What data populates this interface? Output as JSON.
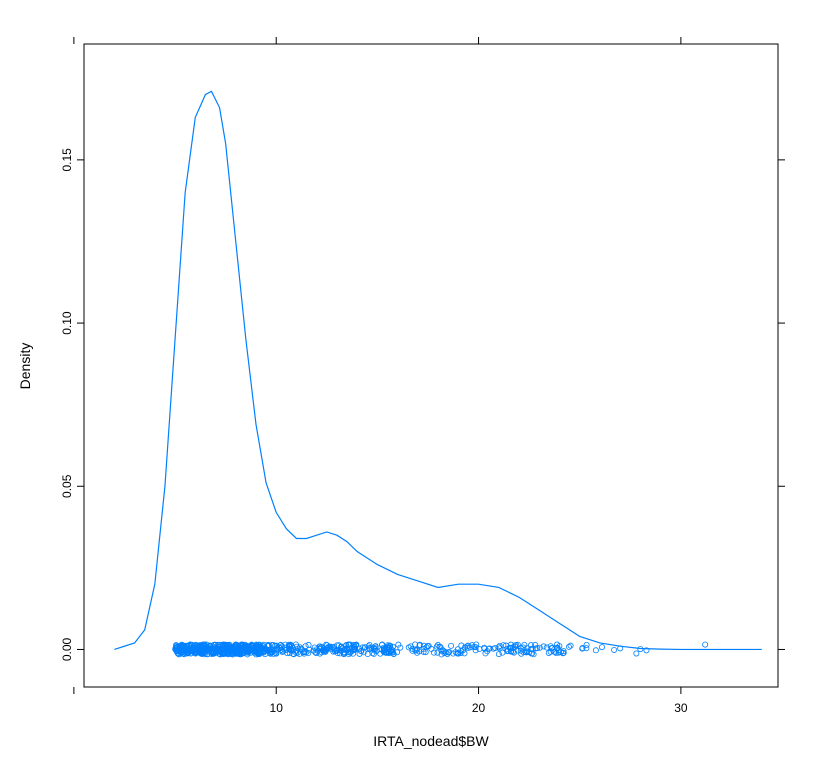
{
  "chart_data": {
    "type": "line",
    "title": "",
    "xlabel": "IRTA_nodead$BW",
    "ylabel": "Density",
    "xlim": [
      0.5,
      34.8
    ],
    "ylim": [
      -0.0115,
      0.1855
    ],
    "xticks": [
      {
        "value": 10,
        "label": "10"
      },
      {
        "value": 20,
        "label": "20"
      },
      {
        "value": 30,
        "label": "30"
      }
    ],
    "yticks": [
      {
        "value": 0.0,
        "label": "0.00"
      },
      {
        "value": 0.05,
        "label": "0.05"
      },
      {
        "value": 0.1,
        "label": "0.10"
      },
      {
        "value": 0.15,
        "label": "0.15"
      }
    ],
    "grid": false,
    "line_color": "#0080ff",
    "point_color": "#0080ff",
    "density_curve": {
      "x": [
        2.0,
        3.0,
        3.5,
        4.0,
        4.5,
        5.0,
        5.5,
        6.0,
        6.5,
        6.8,
        7.2,
        7.5,
        8.0,
        8.5,
        9.0,
        9.5,
        10.0,
        10.5,
        11.0,
        11.5,
        12.0,
        12.5,
        13.0,
        13.5,
        14.0,
        15.0,
        16.0,
        17.0,
        18.0,
        19.0,
        20.0,
        21.0,
        22.0,
        23.0,
        24.0,
        25.0,
        26.0,
        27.0,
        28.0,
        29.0,
        30.0,
        32.0,
        34.0
      ],
      "y": [
        0.0,
        0.002,
        0.006,
        0.02,
        0.05,
        0.095,
        0.14,
        0.163,
        0.17,
        0.171,
        0.166,
        0.155,
        0.125,
        0.095,
        0.069,
        0.051,
        0.042,
        0.037,
        0.034,
        0.034,
        0.035,
        0.036,
        0.035,
        0.033,
        0.03,
        0.026,
        0.023,
        0.021,
        0.019,
        0.02,
        0.02,
        0.019,
        0.016,
        0.012,
        0.008,
        0.004,
        0.002,
        0.001,
        0.0003,
        0.0001,
        0.0,
        0.0,
        0.0
      ]
    },
    "rug": {
      "dense_ranges": [
        {
          "from": 5.0,
          "to": 9.5,
          "count": 420
        },
        {
          "from": 9.5,
          "to": 16.0,
          "count": 220
        },
        {
          "from": 16.0,
          "to": 24.0,
          "count": 130
        },
        {
          "from": 24.0,
          "to": 25.5,
          "count": 10
        }
      ],
      "extra_points": [
        25.8,
        26.1,
        26.7,
        27.0,
        27.8,
        28.0,
        28.3,
        31.2
      ]
    }
  }
}
